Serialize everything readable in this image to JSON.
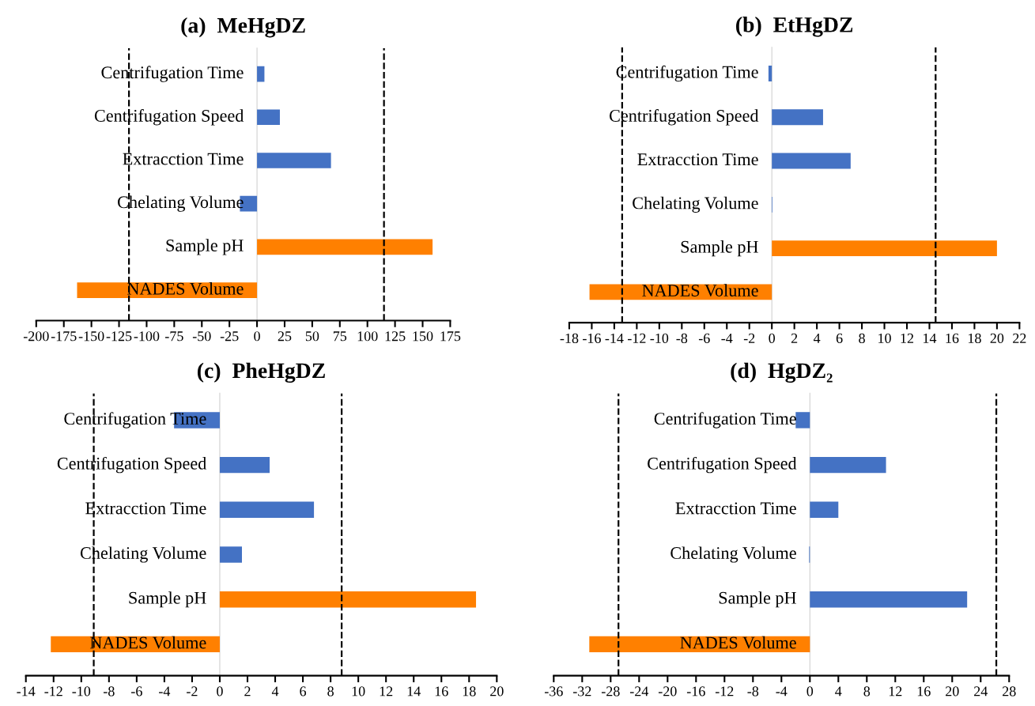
{
  "chart_data": [
    {
      "type": "bar",
      "orientation": "horizontal",
      "title": "(a)  MeHgDZ",
      "categories": [
        "Centrifugation Time",
        "Centrifugation Speed",
        "Extracction Time",
        "Chelating Volume",
        "Sample pH",
        "NADES Volume"
      ],
      "values": [
        6.7,
        20.7,
        67,
        -15.5,
        159,
        -163
      ],
      "colors": [
        "#4472c4",
        "#4472c4",
        "#4472c4",
        "#4472c4",
        "#ff8000",
        "#ff8000"
      ],
      "xlim": [
        -200,
        175
      ],
      "xticks": [
        -200,
        -175,
        -150,
        -125,
        -100,
        -75,
        -50,
        -25,
        0,
        25,
        50,
        75,
        100,
        125,
        150,
        175
      ],
      "ref_lines": [
        {
          "axis": "x",
          "value": -116,
          "color": "#000000",
          "line_style": "dashed"
        },
        {
          "axis": "x",
          "value": 115,
          "color": "#000000",
          "line_style": "dashed"
        }
      ]
    },
    {
      "type": "bar",
      "orientation": "horizontal",
      "title": "(b)  EtHgDZ",
      "categories": [
        "Centrifugation Time",
        "Centrifugation Speed",
        "Extracction Time",
        "Chelating Volume",
        "Sample pH",
        "NADES Volume"
      ],
      "values": [
        -0.3,
        4.55,
        7.0,
        0.05,
        20.0,
        -16.2
      ],
      "colors": [
        "#4472c4",
        "#4472c4",
        "#4472c4",
        "#4472c4",
        "#ff8000",
        "#ff8000"
      ],
      "xlim": [
        -18,
        22
      ],
      "xticks": [
        -18,
        -16,
        -14,
        -12,
        -10,
        -8,
        -6,
        -4,
        -2,
        0,
        2,
        4,
        6,
        8,
        10,
        12,
        14,
        16,
        18,
        20,
        22
      ],
      "ref_lines": [
        {
          "axis": "x",
          "value": -13.3,
          "color": "#000000",
          "line_style": "dashed"
        },
        {
          "axis": "x",
          "value": 14.55,
          "color": "#000000",
          "line_style": "dashed"
        }
      ]
    },
    {
      "type": "bar",
      "orientation": "horizontal",
      "title": "(c)  PheHgDZ",
      "categories": [
        "Centrifugation Time",
        "Centrifugation Speed",
        "Extracction Time",
        "Chelating Volume",
        "Sample pH",
        "NADES Volume"
      ],
      "values": [
        -3.3,
        3.6,
        6.8,
        1.6,
        18.5,
        -12.2
      ],
      "colors": [
        "#4472c4",
        "#4472c4",
        "#4472c4",
        "#4472c4",
        "#ff8000",
        "#ff8000"
      ],
      "xlim": [
        -14,
        20
      ],
      "xticks": [
        -14,
        -12,
        -10,
        -8,
        -6,
        -4,
        -2,
        0,
        2,
        4,
        6,
        8,
        10,
        12,
        14,
        16,
        18,
        20
      ],
      "ref_lines": [
        {
          "axis": "x",
          "value": -9.1,
          "color": "#000000",
          "line_style": "dashed"
        },
        {
          "axis": "x",
          "value": 8.8,
          "color": "#000000",
          "line_style": "dashed"
        }
      ]
    },
    {
      "type": "bar",
      "orientation": "horizontal",
      "title": "(d)  HgDZ₂",
      "categories": [
        "Centrifugation Time",
        "Centrifugation Speed",
        "Extracction Time",
        "Chelating Volume",
        "Sample pH",
        "NADES Volume"
      ],
      "values": [
        -2.0,
        10.7,
        4.0,
        -0.1,
        22.1,
        -31.0
      ],
      "colors": [
        "#4472c4",
        "#4472c4",
        "#4472c4",
        "#4472c4",
        "#4472c4",
        "#ff8000"
      ],
      "xlim": [
        -36,
        28
      ],
      "xticks": [
        -36,
        -32,
        -28,
        -24,
        -20,
        -16,
        -12,
        -8,
        -4,
        0,
        4,
        8,
        12,
        16,
        20,
        24,
        28
      ],
      "ref_lines": [
        {
          "axis": "x",
          "value": -26.9,
          "color": "#000000",
          "line_style": "dashed"
        },
        {
          "axis": "x",
          "value": 26.2,
          "color": "#000000",
          "line_style": "dashed"
        }
      ]
    }
  ]
}
